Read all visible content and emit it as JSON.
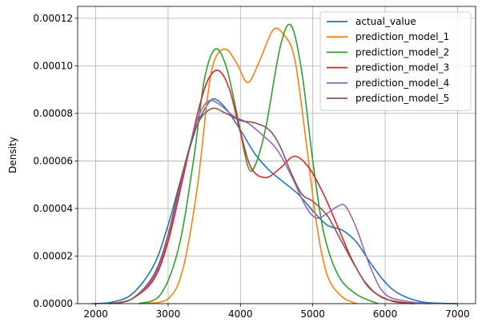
{
  "chart_data": {
    "type": "line",
    "title": "",
    "xlabel": "",
    "ylabel": "Density",
    "xlim": [
      1750,
      7250
    ],
    "ylim": [
      0,
      0.000125
    ],
    "x_ticks": [
      2000,
      3000,
      4000,
      5000,
      6000,
      7000
    ],
    "y_ticks": [
      0,
      2e-05,
      4e-05,
      6e-05,
      8e-05,
      0.0001,
      0.00012
    ],
    "x_tick_labels": [
      "2000",
      "3000",
      "4000",
      "5000",
      "6000",
      "7000"
    ],
    "y_tick_labels": [
      "0.00000",
      "0.00002",
      "0.00004",
      "0.00006",
      "0.00008",
      "0.00010",
      "0.00012"
    ],
    "grid": true,
    "legend_position": "top-right",
    "series": [
      {
        "name": "actual_value",
        "color": "#1f77b4",
        "points": [
          [
            1950,
            0
          ],
          [
            2200,
            5e-07
          ],
          [
            2500,
            4e-06
          ],
          [
            2800,
            1.6e-05
          ],
          [
            3000,
            3.3e-05
          ],
          [
            3200,
            5.5e-05
          ],
          [
            3400,
            7.5e-05
          ],
          [
            3550,
            8.4e-05
          ],
          [
            3650,
            8.6e-05
          ],
          [
            3800,
            8.2e-05
          ],
          [
            4000,
            7.3e-05
          ],
          [
            4200,
            6.3e-05
          ],
          [
            4400,
            5.6e-05
          ],
          [
            4600,
            5.1e-05
          ],
          [
            4800,
            4.6e-05
          ],
          [
            5000,
            3.9e-05
          ],
          [
            5200,
            3.3e-05
          ],
          [
            5400,
            3.1e-05
          ],
          [
            5600,
            2.6e-05
          ],
          [
            5800,
            1.7e-05
          ],
          [
            6000,
            9e-06
          ],
          [
            6200,
            4e-06
          ],
          [
            6500,
            8e-07
          ],
          [
            6800,
            1e-07
          ],
          [
            7000,
            0
          ]
        ]
      },
      {
        "name": "prediction_model_1",
        "color": "#ff7f0e",
        "points": [
          [
            2700,
            0
          ],
          [
            3000,
            2e-06
          ],
          [
            3200,
            1.4e-05
          ],
          [
            3400,
            4.8e-05
          ],
          [
            3550,
            8.8e-05
          ],
          [
            3650,
            0.000103
          ],
          [
            3800,
            0.000107
          ],
          [
            3950,
            0.000101
          ],
          [
            4100,
            9.3e-05
          ],
          [
            4250,
            0.000101
          ],
          [
            4450,
            0.000115
          ],
          [
            4600,
            0.000113
          ],
          [
            4750,
            0.000103
          ],
          [
            4900,
            7e-05
          ],
          [
            5050,
            3.4e-05
          ],
          [
            5200,
            1.2e-05
          ],
          [
            5400,
            3e-06
          ],
          [
            5600,
            0
          ]
        ]
      },
      {
        "name": "prediction_model_2",
        "color": "#2ca02c",
        "points": [
          [
            2600,
            0
          ],
          [
            2900,
            4e-06
          ],
          [
            3150,
            2.4e-05
          ],
          [
            3350,
            6e-05
          ],
          [
            3500,
            9.4e-05
          ],
          [
            3650,
            0.000107
          ],
          [
            3800,
            0.0001
          ],
          [
            3950,
            8e-05
          ],
          [
            4100,
            5.8e-05
          ],
          [
            4200,
            5.8e-05
          ],
          [
            4350,
            7.4e-05
          ],
          [
            4550,
            0.000108
          ],
          [
            4700,
            0.000117
          ],
          [
            4850,
            9.7e-05
          ],
          [
            5000,
            6e-05
          ],
          [
            5150,
            3e-05
          ],
          [
            5350,
            1.2e-05
          ],
          [
            5600,
            4e-06
          ],
          [
            5900,
            0
          ]
        ]
      },
      {
        "name": "prediction_model_3",
        "color": "#d62728",
        "points": [
          [
            2200,
            0
          ],
          [
            2500,
            2e-06
          ],
          [
            2800,
            1e-05
          ],
          [
            3000,
            2.6e-05
          ],
          [
            3200,
            5.2e-05
          ],
          [
            3400,
            7.9e-05
          ],
          [
            3550,
            9.4e-05
          ],
          [
            3700,
            9.8e-05
          ],
          [
            3850,
            9e-05
          ],
          [
            4000,
            7.2e-05
          ],
          [
            4150,
            5.7e-05
          ],
          [
            4350,
            5.3e-05
          ],
          [
            4550,
            5.7e-05
          ],
          [
            4750,
            6.2e-05
          ],
          [
            4950,
            5.7e-05
          ],
          [
            5150,
            4.6e-05
          ],
          [
            5350,
            3.2e-05
          ],
          [
            5550,
            1.8e-05
          ],
          [
            5750,
            8e-06
          ],
          [
            6000,
            2e-06
          ],
          [
            6400,
            0
          ]
        ]
      },
      {
        "name": "prediction_model_4",
        "color": "#9467bd",
        "points": [
          [
            2200,
            0
          ],
          [
            2500,
            2e-06
          ],
          [
            2800,
            1.1e-05
          ],
          [
            3000,
            2.8e-05
          ],
          [
            3200,
            5.4e-05
          ],
          [
            3400,
            7.7e-05
          ],
          [
            3550,
            8.5e-05
          ],
          [
            3700,
            8.4e-05
          ],
          [
            3900,
            7.9e-05
          ],
          [
            4100,
            7.6e-05
          ],
          [
            4300,
            7.1e-05
          ],
          [
            4500,
            6.5e-05
          ],
          [
            4700,
            5.4e-05
          ],
          [
            4900,
            4.1e-05
          ],
          [
            5050,
            3.6e-05
          ],
          [
            5200,
            3.8e-05
          ],
          [
            5350,
            4.1e-05
          ],
          [
            5450,
            4.1e-05
          ],
          [
            5600,
            3.2e-05
          ],
          [
            5800,
            1.5e-05
          ],
          [
            6000,
            4e-06
          ],
          [
            6300,
            1e-06
          ],
          [
            6600,
            0
          ]
        ]
      },
      {
        "name": "prediction_model_5",
        "color": "#8c564b",
        "points": [
          [
            2200,
            0
          ],
          [
            2500,
            2e-06
          ],
          [
            2800,
            1.2e-05
          ],
          [
            3000,
            2.9e-05
          ],
          [
            3200,
            5.5e-05
          ],
          [
            3400,
            7.5e-05
          ],
          [
            3600,
            8.2e-05
          ],
          [
            3800,
            8e-05
          ],
          [
            4000,
            7.7e-05
          ],
          [
            4200,
            7.6e-05
          ],
          [
            4400,
            7.3e-05
          ],
          [
            4550,
            6.6e-05
          ],
          [
            4700,
            5.5e-05
          ],
          [
            4850,
            4.6e-05
          ],
          [
            5000,
            4.3e-05
          ],
          [
            5200,
            3.7e-05
          ],
          [
            5400,
            2.6e-05
          ],
          [
            5600,
            1.5e-05
          ],
          [
            5800,
            6e-06
          ],
          [
            6100,
            1e-06
          ],
          [
            6400,
            0
          ]
        ]
      }
    ]
  }
}
